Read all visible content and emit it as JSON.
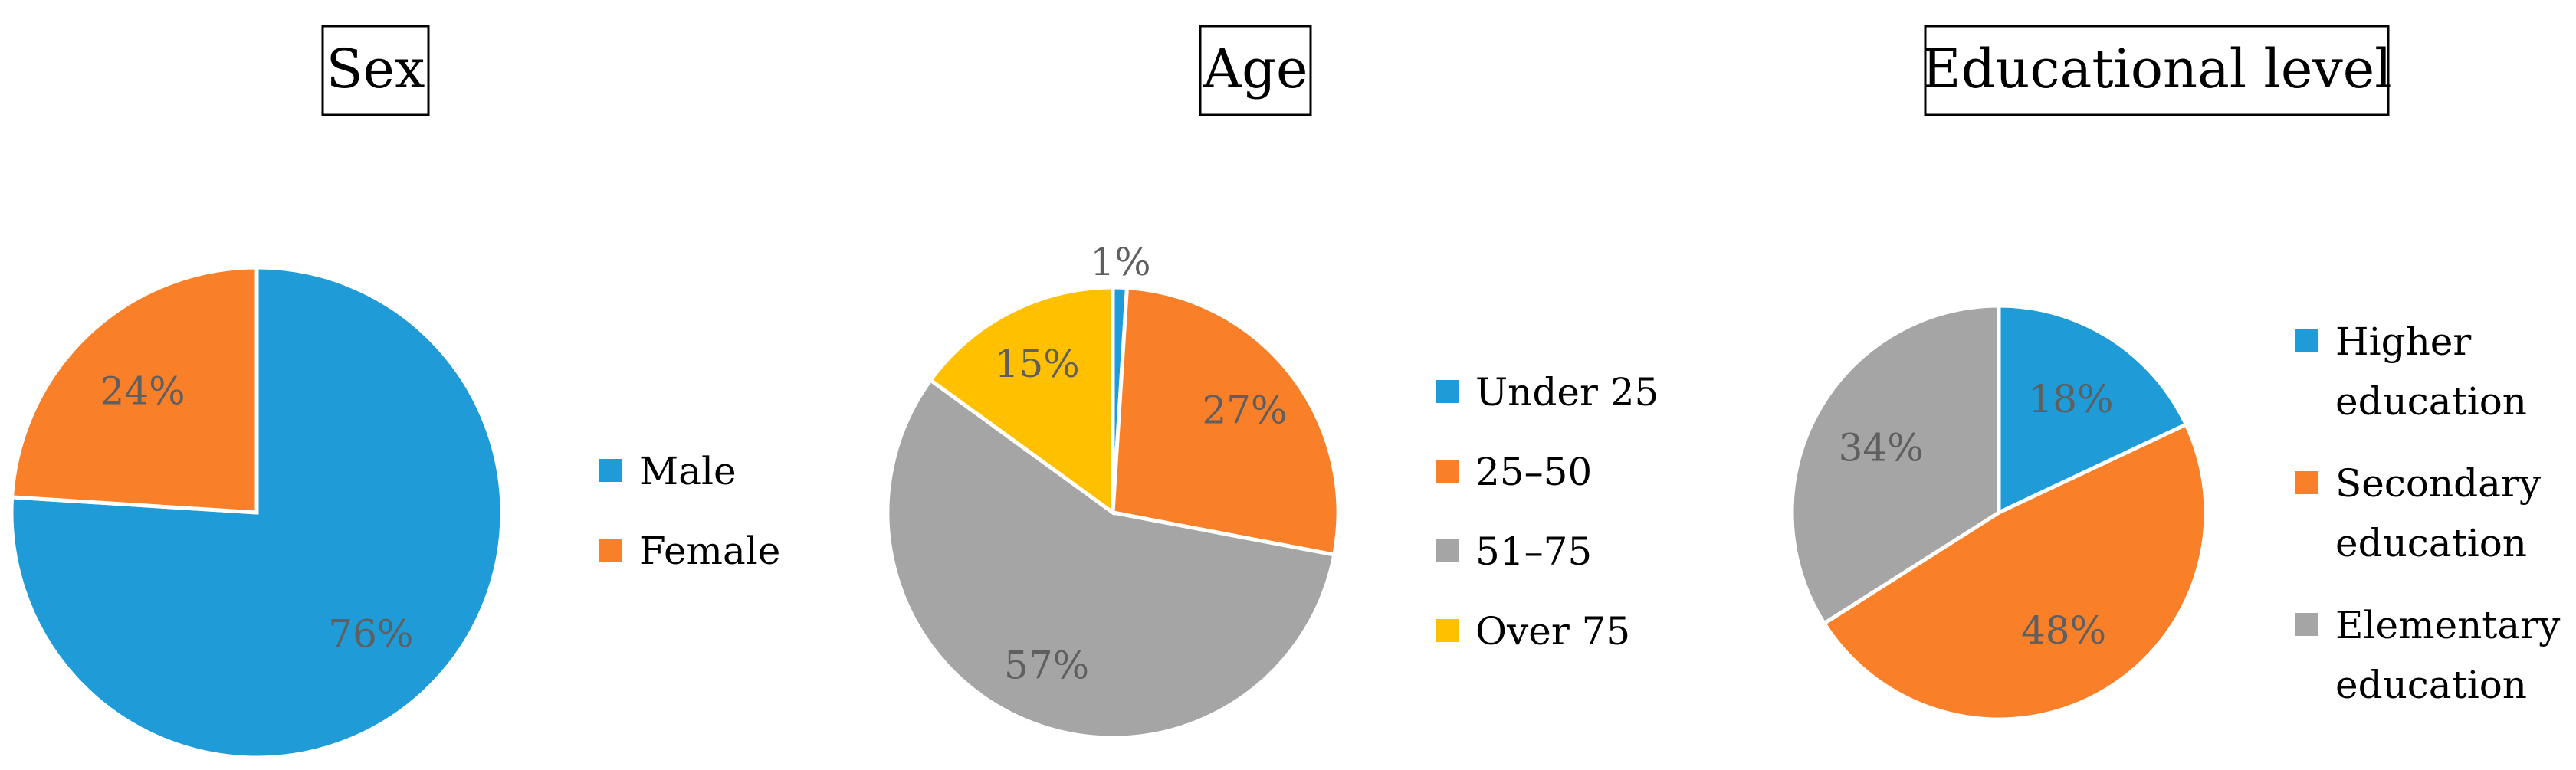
{
  "chart_data": [
    {
      "type": "pie",
      "title": "Sex",
      "legend_position": "right",
      "slices": [
        {
          "label": "Male",
          "value": 76,
          "display": "76%",
          "color": "#1f9bd7"
        },
        {
          "label": "Female",
          "value": 24,
          "display": "24%",
          "color": "#f97f29"
        }
      ]
    },
    {
      "type": "pie",
      "title": "Age",
      "legend_position": "right",
      "slices": [
        {
          "label": "Under 25",
          "value": 1,
          "display": "1%",
          "color": "#1f9bd7"
        },
        {
          "label": "25–50",
          "value": 27,
          "display": "27%",
          "color": "#f97f29"
        },
        {
          "label": "51–75",
          "value": 57,
          "display": "57%",
          "color": "#a5a5a5"
        },
        {
          "label": "Over 75",
          "value": 15,
          "display": "15%",
          "color": "#ffc000"
        }
      ]
    },
    {
      "type": "pie",
      "title": "Educational level",
      "legend_position": "right",
      "slices": [
        {
          "label": [
            "Higher",
            "education"
          ],
          "value": 18,
          "display": "18%",
          "color": "#1f9bd7"
        },
        {
          "label": [
            "Secondary",
            "education"
          ],
          "value": 48,
          "display": "48%",
          "color": "#f97f29"
        },
        {
          "label": [
            "Elementary",
            "education"
          ],
          "value": 34,
          "display": "34%",
          "color": "#a5a5a5"
        }
      ]
    }
  ]
}
